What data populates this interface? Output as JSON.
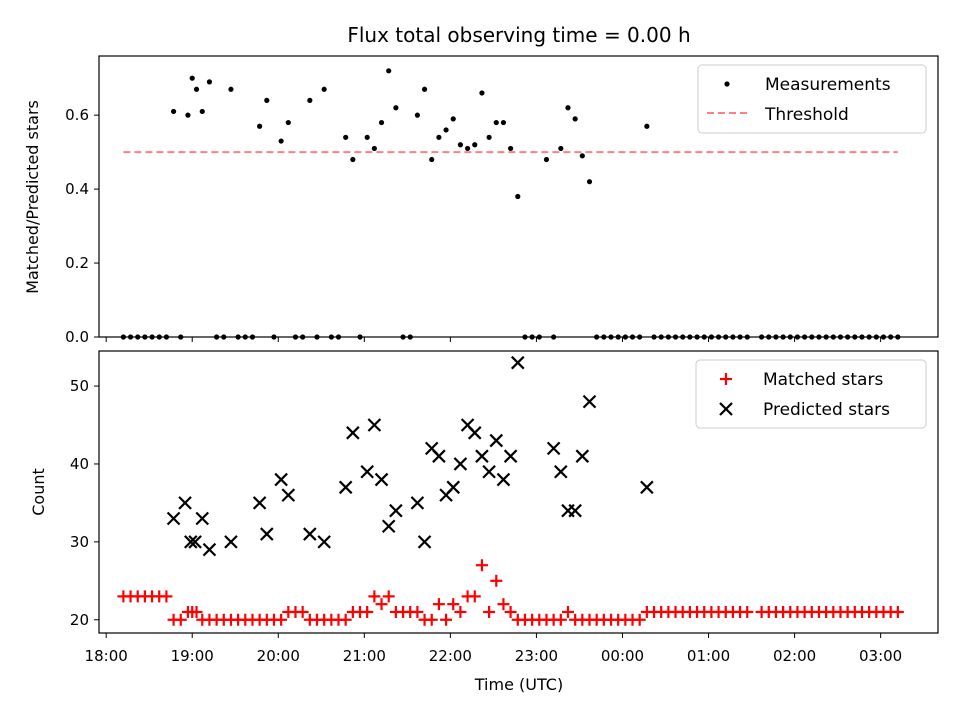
{
  "colors": {
    "measurements": "#000000",
    "threshold": "#ff8080",
    "matched": "#ff0000",
    "predicted": "#000000",
    "legend_border": "#cccccc"
  },
  "chart_data": [
    {
      "type": "scatter",
      "title": "Flux total observing time = 0.00 h",
      "ylabel": "Matched/Predicted stars",
      "xlabel": "",
      "x_unit": "time (UTC)",
      "xlim": [
        "17:55",
        "03:40"
      ],
      "ylim": [
        0.0,
        0.76
      ],
      "yticks": [
        "0.0",
        "0.2",
        "0.4",
        "0.6"
      ],
      "legend_position": "upper right",
      "legend": [
        "Measurements",
        "Threshold"
      ],
      "threshold": {
        "name": "Threshold",
        "value": 0.5,
        "x_range": [
          "18:12",
          "03:12"
        ]
      },
      "series": [
        {
          "name": "Measurements",
          "points": [
            [
              "18:12",
              0.0
            ],
            [
              "18:17",
              0.0
            ],
            [
              "18:22",
              0.0
            ],
            [
              "18:27",
              0.0
            ],
            [
              "18:32",
              0.0
            ],
            [
              "18:37",
              0.0
            ],
            [
              "18:42",
              0.0
            ],
            [
              "18:47",
              0.61
            ],
            [
              "18:52",
              0.0
            ],
            [
              "18:57",
              0.6
            ],
            [
              "19:00",
              0.7
            ],
            [
              "19:03",
              0.67
            ],
            [
              "19:07",
              0.61
            ],
            [
              "19:12",
              0.69
            ],
            [
              "19:17",
              0.0
            ],
            [
              "19:22",
              0.0
            ],
            [
              "19:27",
              0.67
            ],
            [
              "19:32",
              0.0
            ],
            [
              "19:37",
              0.0
            ],
            [
              "19:42",
              0.0
            ],
            [
              "19:47",
              0.57
            ],
            [
              "19:52",
              0.64
            ],
            [
              "19:57",
              0.0
            ],
            [
              "20:02",
              0.53
            ],
            [
              "20:07",
              0.58
            ],
            [
              "20:12",
              0.0
            ],
            [
              "20:17",
              0.0
            ],
            [
              "20:22",
              0.64
            ],
            [
              "20:27",
              0.0
            ],
            [
              "20:32",
              0.67
            ],
            [
              "20:37",
              0.0
            ],
            [
              "20:42",
              0.0
            ],
            [
              "20:47",
              0.54
            ],
            [
              "20:52",
              0.48
            ],
            [
              "20:57",
              0.0
            ],
            [
              "21:02",
              0.54
            ],
            [
              "21:07",
              0.51
            ],
            [
              "21:12",
              0.58
            ],
            [
              "21:17",
              0.72
            ],
            [
              "21:22",
              0.62
            ],
            [
              "21:27",
              0.0
            ],
            [
              "21:32",
              0.0
            ],
            [
              "21:37",
              0.6
            ],
            [
              "21:42",
              0.67
            ],
            [
              "21:47",
              0.48
            ],
            [
              "21:52",
              0.54
            ],
            [
              "21:57",
              0.56
            ],
            [
              "22:02",
              0.59
            ],
            [
              "22:07",
              0.52
            ],
            [
              "22:12",
              0.51
            ],
            [
              "22:17",
              0.52
            ],
            [
              "22:22",
              0.66
            ],
            [
              "22:27",
              0.54
            ],
            [
              "22:32",
              0.58
            ],
            [
              "22:37",
              0.58
            ],
            [
              "22:42",
              0.51
            ],
            [
              "22:47",
              0.38
            ],
            [
              "22:52",
              0.0
            ],
            [
              "22:57",
              0.0
            ],
            [
              "23:02",
              0.0
            ],
            [
              "23:07",
              0.48
            ],
            [
              "23:12",
              0.0
            ],
            [
              "23:17",
              0.51
            ],
            [
              "23:22",
              0.62
            ],
            [
              "23:27",
              0.59
            ],
            [
              "23:32",
              0.49
            ],
            [
              "23:37",
              0.42
            ],
            [
              "23:42",
              0.0
            ],
            [
              "23:47",
              0.0
            ],
            [
              "23:52",
              0.0
            ],
            [
              "23:57",
              0.0
            ],
            [
              "00:02",
              0.0
            ],
            [
              "00:07",
              0.0
            ],
            [
              "00:12",
              0.0
            ],
            [
              "00:17",
              0.57
            ],
            [
              "00:22",
              0.0
            ],
            [
              "00:27",
              0.0
            ],
            [
              "00:32",
              0.0
            ],
            [
              "00:37",
              0.0
            ],
            [
              "00:42",
              0.0
            ],
            [
              "00:47",
              0.0
            ],
            [
              "00:52",
              0.0
            ],
            [
              "00:57",
              0.0
            ],
            [
              "01:02",
              0.0
            ],
            [
              "01:07",
              0.0
            ],
            [
              "01:12",
              0.0
            ],
            [
              "01:17",
              0.0
            ],
            [
              "01:22",
              0.0
            ],
            [
              "01:27",
              0.0
            ],
            [
              "01:37",
              0.0
            ],
            [
              "01:42",
              0.0
            ],
            [
              "01:47",
              0.0
            ],
            [
              "01:52",
              0.0
            ],
            [
              "01:57",
              0.0
            ],
            [
              "02:02",
              0.0
            ],
            [
              "02:07",
              0.0
            ],
            [
              "02:12",
              0.0
            ],
            [
              "02:17",
              0.0
            ],
            [
              "02:22",
              0.0
            ],
            [
              "02:27",
              0.0
            ],
            [
              "02:32",
              0.0
            ],
            [
              "02:37",
              0.0
            ],
            [
              "02:42",
              0.0
            ],
            [
              "02:47",
              0.0
            ],
            [
              "02:52",
              0.0
            ],
            [
              "02:57",
              0.0
            ],
            [
              "03:02",
              0.0
            ],
            [
              "03:07",
              0.0
            ],
            [
              "03:12",
              0.0
            ]
          ]
        }
      ]
    },
    {
      "type": "scatter",
      "title": "",
      "xlabel": "Time (UTC)",
      "ylabel": "Count",
      "xlim": [
        "17:55",
        "03:40"
      ],
      "ylim": [
        18.3,
        54.5
      ],
      "xticks": [
        "18:00",
        "19:00",
        "20:00",
        "21:00",
        "22:00",
        "23:00",
        "00:00",
        "01:00",
        "02:00",
        "03:00"
      ],
      "yticks": [
        "20",
        "30",
        "40",
        "50"
      ],
      "legend_position": "upper right",
      "legend": [
        "Matched stars",
        "Predicted stars"
      ],
      "series": [
        {
          "name": "Matched stars",
          "points": [
            [
              "18:12",
              23
            ],
            [
              "18:17",
              23
            ],
            [
              "18:22",
              23
            ],
            [
              "18:27",
              23
            ],
            [
              "18:32",
              23
            ],
            [
              "18:37",
              23
            ],
            [
              "18:42",
              23
            ],
            [
              "18:47",
              20
            ],
            [
              "18:52",
              20
            ],
            [
              "18:57",
              21
            ],
            [
              "19:00",
              21
            ],
            [
              "19:03",
              21
            ],
            [
              "19:07",
              20
            ],
            [
              "19:12",
              20
            ],
            [
              "19:17",
              20
            ],
            [
              "19:22",
              20
            ],
            [
              "19:27",
              20
            ],
            [
              "19:32",
              20
            ],
            [
              "19:37",
              20
            ],
            [
              "19:42",
              20
            ],
            [
              "19:47",
              20
            ],
            [
              "19:52",
              20
            ],
            [
              "19:57",
              20
            ],
            [
              "20:02",
              20
            ],
            [
              "20:07",
              21
            ],
            [
              "20:12",
              21
            ],
            [
              "20:17",
              21
            ],
            [
              "20:22",
              20
            ],
            [
              "20:27",
              20
            ],
            [
              "20:32",
              20
            ],
            [
              "20:37",
              20
            ],
            [
              "20:42",
              20
            ],
            [
              "20:47",
              20
            ],
            [
              "20:52",
              21
            ],
            [
              "20:57",
              21
            ],
            [
              "21:02",
              21
            ],
            [
              "21:07",
              23
            ],
            [
              "21:12",
              22
            ],
            [
              "21:17",
              23
            ],
            [
              "21:22",
              21
            ],
            [
              "21:27",
              21
            ],
            [
              "21:32",
              21
            ],
            [
              "21:37",
              21
            ],
            [
              "21:42",
              20
            ],
            [
              "21:47",
              20
            ],
            [
              "21:52",
              22
            ],
            [
              "21:57",
              20
            ],
            [
              "22:02",
              22
            ],
            [
              "22:07",
              21
            ],
            [
              "22:12",
              23
            ],
            [
              "22:17",
              23
            ],
            [
              "22:22",
              27
            ],
            [
              "22:27",
              21
            ],
            [
              "22:32",
              25
            ],
            [
              "22:37",
              22
            ],
            [
              "22:42",
              21
            ],
            [
              "22:47",
              20
            ],
            [
              "22:52",
              20
            ],
            [
              "22:57",
              20
            ],
            [
              "23:02",
              20
            ],
            [
              "23:07",
              20
            ],
            [
              "23:12",
              20
            ],
            [
              "23:17",
              20
            ],
            [
              "23:22",
              21
            ],
            [
              "23:27",
              20
            ],
            [
              "23:32",
              20
            ],
            [
              "23:37",
              20
            ],
            [
              "23:42",
              20
            ],
            [
              "23:47",
              20
            ],
            [
              "23:52",
              20
            ],
            [
              "23:57",
              20
            ],
            [
              "00:02",
              20
            ],
            [
              "00:07",
              20
            ],
            [
              "00:12",
              20
            ],
            [
              "00:17",
              21
            ],
            [
              "00:22",
              21
            ],
            [
              "00:27",
              21
            ],
            [
              "00:32",
              21
            ],
            [
              "00:37",
              21
            ],
            [
              "00:42",
              21
            ],
            [
              "00:47",
              21
            ],
            [
              "00:52",
              21
            ],
            [
              "00:57",
              21
            ],
            [
              "01:02",
              21
            ],
            [
              "01:07",
              21
            ],
            [
              "01:12",
              21
            ],
            [
              "01:17",
              21
            ],
            [
              "01:22",
              21
            ],
            [
              "01:27",
              21
            ],
            [
              "01:37",
              21
            ],
            [
              "01:42",
              21
            ],
            [
              "01:47",
              21
            ],
            [
              "01:52",
              21
            ],
            [
              "01:57",
              21
            ],
            [
              "02:02",
              21
            ],
            [
              "02:07",
              21
            ],
            [
              "02:12",
              21
            ],
            [
              "02:17",
              21
            ],
            [
              "02:22",
              21
            ],
            [
              "02:27",
              21
            ],
            [
              "02:32",
              21
            ],
            [
              "02:37",
              21
            ],
            [
              "02:42",
              21
            ],
            [
              "02:47",
              21
            ],
            [
              "02:52",
              21
            ],
            [
              "02:57",
              21
            ],
            [
              "03:02",
              21
            ],
            [
              "03:07",
              21
            ],
            [
              "03:12",
              21
            ]
          ]
        },
        {
          "name": "Predicted stars",
          "points": [
            [
              "18:47",
              33
            ],
            [
              "18:55",
              35
            ],
            [
              "18:59",
              30
            ],
            [
              "19:02",
              30
            ],
            [
              "19:07",
              33
            ],
            [
              "19:12",
              29
            ],
            [
              "19:27",
              30
            ],
            [
              "19:47",
              35
            ],
            [
              "19:52",
              31
            ],
            [
              "20:02",
              38
            ],
            [
              "20:07",
              36
            ],
            [
              "20:22",
              31
            ],
            [
              "20:32",
              30
            ],
            [
              "20:47",
              37
            ],
            [
              "20:52",
              44
            ],
            [
              "21:02",
              39
            ],
            [
              "21:07",
              45
            ],
            [
              "21:12",
              38
            ],
            [
              "21:17",
              32
            ],
            [
              "21:22",
              34
            ],
            [
              "21:37",
              35
            ],
            [
              "21:42",
              30
            ],
            [
              "21:47",
              42
            ],
            [
              "21:52",
              41
            ],
            [
              "21:57",
              36
            ],
            [
              "22:02",
              37
            ],
            [
              "22:07",
              40
            ],
            [
              "22:12",
              45
            ],
            [
              "22:17",
              44
            ],
            [
              "22:22",
              41
            ],
            [
              "22:27",
              39
            ],
            [
              "22:32",
              43
            ],
            [
              "22:37",
              38
            ],
            [
              "22:42",
              41
            ],
            [
              "22:47",
              53
            ],
            [
              "23:12",
              42
            ],
            [
              "23:17",
              39
            ],
            [
              "23:22",
              34
            ],
            [
              "23:27",
              34
            ],
            [
              "23:32",
              41
            ],
            [
              "23:37",
              48
            ],
            [
              "00:17",
              37
            ]
          ]
        }
      ]
    }
  ]
}
